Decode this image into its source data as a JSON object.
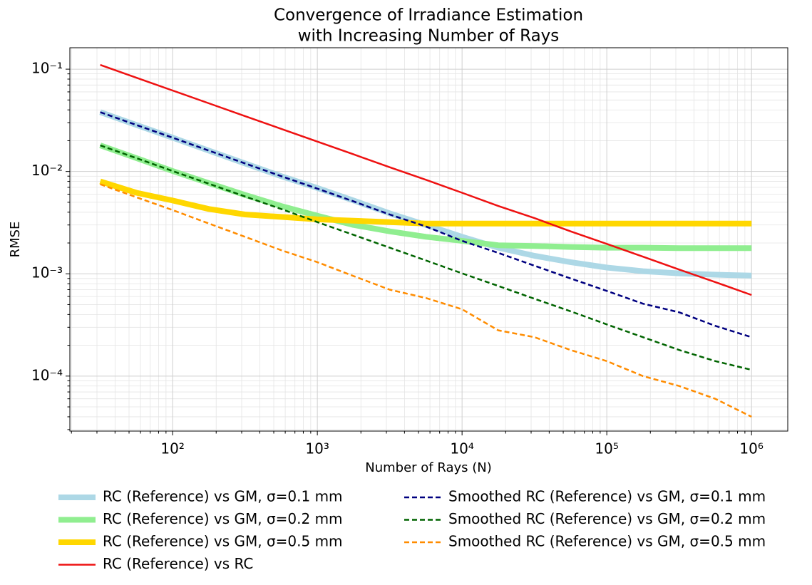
{
  "chart_data": {
    "type": "line",
    "title": [
      "Convergence of Irradiance Estimation",
      "with Increasing Number of Rays"
    ],
    "x_label": "Number of Rays (N)",
    "y_label": "RMSE",
    "log_x": true,
    "log_y": true,
    "grid": true,
    "xlim": [
      19.5,
      1780000
    ],
    "ylim": [
      2.9e-05,
      0.162
    ],
    "xticks": [
      {
        "value": 100,
        "label": "10²"
      },
      {
        "value": 1000,
        "label": "10³"
      },
      {
        "value": 10000,
        "label": "10⁴"
      },
      {
        "value": 100000,
        "label": "10⁵"
      },
      {
        "value": 1000000,
        "label": "10⁶"
      }
    ],
    "yticks": [
      {
        "value": 0.0001,
        "label": "10⁻⁴"
      },
      {
        "value": 0.001,
        "label": "10⁻³"
      },
      {
        "value": 0.01,
        "label": "10⁻²"
      },
      {
        "value": 0.1,
        "label": "10⁻¹"
      }
    ],
    "legend": "below",
    "x": [
      31.6,
      56.2,
      100,
      178,
      316,
      562,
      1000,
      1778,
      3162,
      5623,
      10000,
      17783,
      31623,
      56234,
      100000,
      177828,
      316228,
      562341,
      1000000
    ],
    "series": [
      {
        "name": "RC (Reference) vs GM, σ=0.1 mm",
        "color": "#add8e6",
        "linewidth": 8,
        "dashed": false,
        "values": [
          0.038,
          0.0285,
          0.0214,
          0.016,
          0.012,
          0.009,
          0.0069,
          0.0052,
          0.0039,
          0.003,
          0.0023,
          0.0018,
          0.0015,
          0.0013,
          0.00115,
          0.00106,
          0.00101,
          0.00098,
          0.00096
        ]
      },
      {
        "name": "RC (Reference) vs GM, σ=0.2 mm",
        "color": "#90ee90",
        "linewidth": 8,
        "dashed": false,
        "values": [
          0.018,
          0.0135,
          0.0101,
          0.0077,
          0.0059,
          0.0046,
          0.0037,
          0.003,
          0.0026,
          0.0023,
          0.0021,
          0.0019,
          0.00187,
          0.00183,
          0.0018,
          0.0018,
          0.00178,
          0.00178,
          0.00178
        ]
      },
      {
        "name": "RC (Reference) vs GM, σ=0.5 mm",
        "color": "#ffd700",
        "linewidth": 8,
        "dashed": false,
        "values": [
          0.008,
          0.0062,
          0.0052,
          0.0043,
          0.0038,
          0.0036,
          0.0034,
          0.0033,
          0.0032,
          0.0031,
          0.0031,
          0.0031,
          0.0031,
          0.0031,
          0.0031,
          0.0031,
          0.0031,
          0.0031,
          0.0031
        ]
      },
      {
        "name": "RC (Reference) vs RC",
        "color": "#ee1111",
        "linewidth": 2.5,
        "dashed": false,
        "values": [
          0.11,
          0.0825,
          0.0619,
          0.0464,
          0.0348,
          0.0261,
          0.0196,
          0.0147,
          0.011,
          0.0083,
          0.0062,
          0.0046,
          0.0035,
          0.0026,
          0.00196,
          0.00147,
          0.0011,
          0.00083,
          0.00062
        ]
      },
      {
        "name": "Smoothed RC (Reference) vs GM, σ=0.1 mm",
        "color": "#000080",
        "linewidth": 2.5,
        "dashed": true,
        "values": [
          0.038,
          0.0285,
          0.0214,
          0.016,
          0.012,
          0.009,
          0.0068,
          0.0051,
          0.0038,
          0.0029,
          0.0021,
          0.0016,
          0.0012,
          0.0009,
          0.00068,
          0.00051,
          0.00042,
          0.00031,
          0.00024
        ]
      },
      {
        "name": "Smoothed RC (Reference) vs GM, σ=0.2 mm",
        "color": "#006400",
        "linewidth": 2.5,
        "dashed": true,
        "values": [
          0.018,
          0.0135,
          0.0101,
          0.0076,
          0.0057,
          0.0043,
          0.0032,
          0.0024,
          0.0018,
          0.00135,
          0.00101,
          0.00076,
          0.00057,
          0.00043,
          0.00032,
          0.00024,
          0.00018,
          0.00014,
          0.000115
        ]
      },
      {
        "name": "Smoothed RC (Reference) vs GM, σ=0.5 mm",
        "color": "#ff8c00",
        "linewidth": 2.5,
        "dashed": true,
        "values": [
          0.0075,
          0.0056,
          0.0042,
          0.0031,
          0.0023,
          0.0017,
          0.0013,
          0.00095,
          0.0007,
          0.00058,
          0.00045,
          0.00028,
          0.00024,
          0.00018,
          0.00014,
          0.0001,
          8e-05,
          6e-05,
          4e-05
        ]
      }
    ]
  }
}
